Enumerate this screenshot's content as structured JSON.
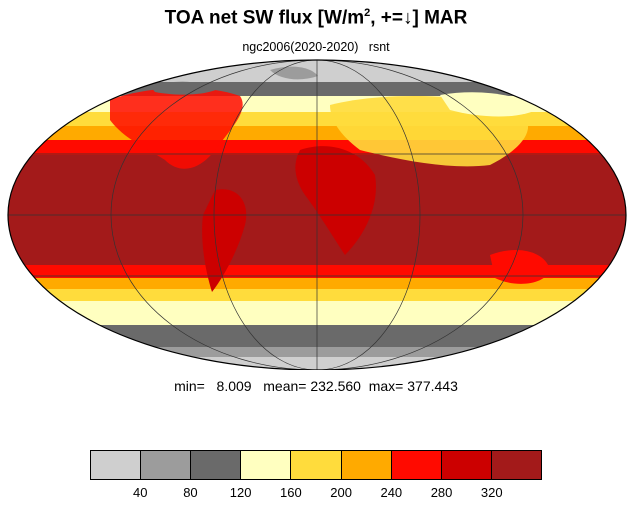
{
  "title": {
    "prefix": "TOA net SW flux [W/m",
    "sup": "2",
    "suffix": ", +=↓]  MAR"
  },
  "subtitle": "ngc2006(2020-2020)   rsnt",
  "stats": {
    "min_label": "min=",
    "min_value": "8.009",
    "mean_label": "mean=",
    "mean_value": "232.560",
    "max_label": "max=",
    "max_value": "377.443"
  },
  "colorbar": {
    "colors": [
      "#cfcfcf",
      "#9c9c9c",
      "#6a6a6a",
      "#ffffc0",
      "#ffdc3c",
      "#ffaa00",
      "#ff0a00",
      "#cc0000",
      "#a31a1a"
    ],
    "labels": [
      "40",
      "80",
      "120",
      "160",
      "200",
      "240",
      "280",
      "320"
    ]
  }
}
